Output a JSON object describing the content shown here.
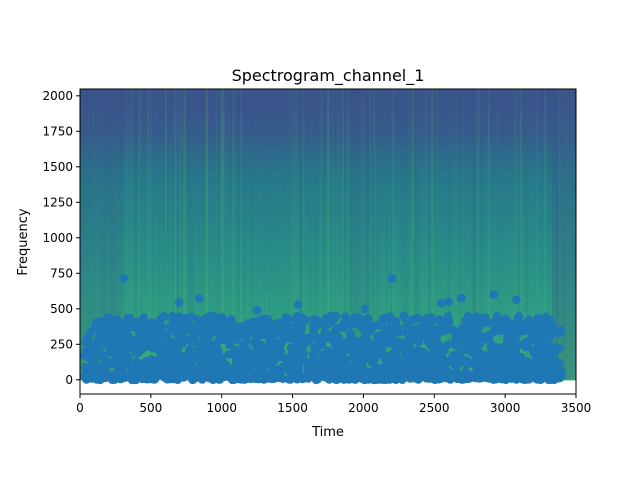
{
  "chart_data": {
    "type": "heatmap",
    "title": "Spectrogram_channel_1",
    "xlabel": "Time",
    "ylabel": "Frequency",
    "xlim": [
      0,
      3500
    ],
    "ylim": [
      -100,
      2048
    ],
    "x_ticks": [
      0,
      500,
      1000,
      1500,
      2000,
      2500,
      3000,
      3500
    ],
    "y_ticks": [
      0,
      250,
      500,
      750,
      1000,
      1250,
      1500,
      1750,
      2000
    ],
    "spectrogram_extent": {
      "time": [
        0,
        3500
      ],
      "frequency": [
        0,
        2048
      ]
    },
    "colormap": "viridis",
    "grid": false,
    "legend": "none",
    "overlay_series": {
      "type": "scatter",
      "color": "#1f77b4",
      "time_range": [
        30,
        3400
      ],
      "typical_frequency_range": [
        0,
        450
      ],
      "highlight_points": [
        {
          "x": 310,
          "y": 715
        },
        {
          "x": 700,
          "y": 545
        },
        {
          "x": 840,
          "y": 575
        },
        {
          "x": 1250,
          "y": 490
        },
        {
          "x": 1540,
          "y": 530
        },
        {
          "x": 2010,
          "y": 500
        },
        {
          "x": 2200,
          "y": 715
        },
        {
          "x": 2550,
          "y": 540
        },
        {
          "x": 2600,
          "y": 550
        },
        {
          "x": 2690,
          "y": 575
        },
        {
          "x": 2920,
          "y": 600
        },
        {
          "x": 3080,
          "y": 565
        }
      ]
    }
  }
}
